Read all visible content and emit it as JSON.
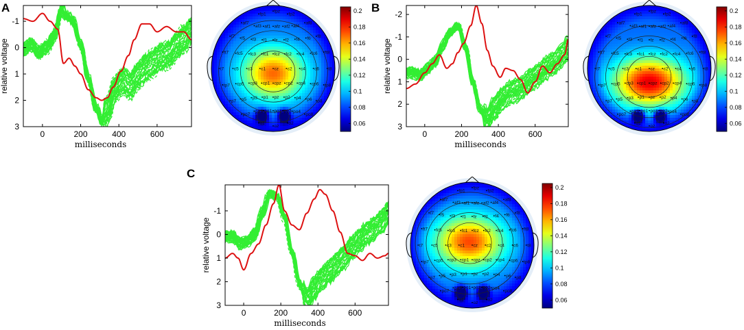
{
  "panels": [
    "A",
    "B",
    "C"
  ],
  "colors": {
    "green": "#33ee33",
    "red": "#dd1111"
  },
  "chart_data": [
    {
      "panel": "A",
      "type": "line",
      "xlabel": "milliseconds",
      "ylabel": "relative voltage",
      "xlim": [
        -100,
        780
      ],
      "ylim": [
        3,
        -1.6
      ],
      "y_inverted": true,
      "xticks": [
        0,
        200,
        400,
        600
      ],
      "yticks": [
        -1,
        0,
        1,
        2,
        3
      ],
      "series": [
        {
          "name": "red",
          "x": [
            -100,
            -50,
            0,
            40,
            80,
            110,
            140,
            170,
            200,
            240,
            280,
            310,
            340,
            370,
            410,
            450,
            480,
            520,
            560,
            600,
            650,
            700,
            740,
            780
          ],
          "y": [
            -1.1,
            -1.0,
            -1.3,
            -1.0,
            -0.7,
            0.6,
            0.4,
            0.7,
            1.0,
            1.6,
            1.9,
            2.0,
            1.9,
            1.5,
            0.9,
            0.3,
            -0.3,
            -0.9,
            -0.9,
            -0.6,
            -0.8,
            -0.6,
            -0.6,
            -0.3
          ]
        },
        {
          "name": "green",
          "x": [
            -100,
            -60,
            -20,
            20,
            60,
            100,
            130,
            160,
            200,
            240,
            280,
            310,
            340,
            380,
            420,
            460,
            500,
            540,
            580,
            620,
            660,
            700,
            740,
            780
          ],
          "y": [
            0.1,
            -0.1,
            0.2,
            0.0,
            -0.4,
            -1.4,
            -1.2,
            -1.0,
            -0.1,
            1.2,
            2.3,
            2.8,
            2.4,
            1.6,
            1.3,
            1.5,
            1.1,
            0.8,
            0.6,
            0.4,
            0.3,
            0.0,
            -0.3,
            -0.6
          ]
        }
      ]
    },
    {
      "panel": "B",
      "type": "line",
      "xlabel": "milliseconds",
      "ylabel": "relative voltage",
      "xlim": [
        -100,
        780
      ],
      "ylim": [
        3,
        -2.4
      ],
      "y_inverted": true,
      "xticks": [
        0,
        200,
        400,
        600
      ],
      "yticks": [
        -2,
        -1,
        0,
        1,
        2,
        3
      ],
      "series": [
        {
          "name": "red",
          "x": [
            -100,
            -50,
            0,
            40,
            80,
            120,
            150,
            180,
            210,
            250,
            280,
            310,
            340,
            370,
            410,
            440,
            480,
            520,
            560,
            600,
            640,
            680,
            720,
            760,
            780
          ],
          "y": [
            1.3,
            1.1,
            0.6,
            0.2,
            -0.2,
            0.4,
            0.2,
            -0.3,
            -0.7,
            -1.5,
            -2.4,
            -1.6,
            -0.4,
            0.3,
            0.8,
            0.4,
            0.5,
            0.9,
            1.5,
            1.0,
            0.3,
            0.6,
            0.2,
            -0.2,
            -0.9
          ]
        },
        {
          "name": "green",
          "x": [
            -100,
            -60,
            -20,
            20,
            60,
            100,
            140,
            180,
            220,
            260,
            300,
            340,
            380,
            420,
            460,
            500,
            540,
            580,
            620,
            660,
            700,
            740,
            780
          ],
          "y": [
            0.6,
            0.6,
            0.7,
            0.4,
            0.1,
            -0.6,
            -1.2,
            -1.5,
            -0.6,
            1.0,
            2.2,
            2.7,
            2.2,
            1.8,
            1.5,
            1.4,
            1.2,
            0.9,
            0.7,
            0.4,
            0.2,
            -0.1,
            -0.5
          ]
        }
      ]
    },
    {
      "panel": "C",
      "type": "line",
      "xlabel": "milliseconds",
      "ylabel": "relative voltage",
      "xlim": [
        -100,
        780
      ],
      "ylim": [
        3,
        -2.1
      ],
      "y_inverted": true,
      "xticks": [
        0,
        200,
        400,
        600
      ],
      "yticks": [
        -1,
        0,
        1,
        2,
        3
      ],
      "series": [
        {
          "name": "red",
          "x": [
            -100,
            -60,
            -30,
            0,
            40,
            80,
            120,
            160,
            190,
            220,
            260,
            300,
            340,
            380,
            410,
            440,
            480,
            520,
            560,
            600,
            640,
            680,
            720,
            760,
            780
          ],
          "y": [
            1.0,
            0.8,
            1.0,
            1.5,
            0.8,
            0.4,
            -0.4,
            -1.3,
            -2.1,
            -1.0,
            -0.4,
            -0.2,
            -0.9,
            -1.5,
            -1.9,
            -1.7,
            -1.0,
            -0.1,
            0.8,
            0.9,
            1.1,
            0.8,
            1.0,
            0.9,
            0.8
          ]
        },
        {
          "name": "green",
          "x": [
            -100,
            -60,
            -20,
            20,
            60,
            100,
            140,
            180,
            220,
            260,
            300,
            340,
            380,
            420,
            460,
            500,
            540,
            580,
            620,
            660,
            700,
            740,
            780
          ],
          "y": [
            0.1,
            0.1,
            0.4,
            0.3,
            0.0,
            -0.9,
            -1.7,
            -1.6,
            -0.7,
            0.8,
            2.1,
            2.8,
            2.3,
            1.9,
            1.6,
            1.3,
            1.0,
            0.6,
            0.3,
            0.0,
            -0.2,
            -0.5,
            -0.9
          ]
        }
      ]
    }
  ],
  "colorbar": {
    "ticks": [
      "0.2",
      "0.18",
      "0.16",
      "0.14",
      "0.12",
      "0.1",
      "0.08",
      "0.06"
    ],
    "min": 0.05,
    "max": 0.205
  },
  "topomap_electrodes": [
    "fp1",
    "fpz",
    "fp2",
    "af7",
    "af3",
    "af1",
    "afz",
    "af2",
    "af4",
    "af8",
    "f7",
    "f5",
    "f3",
    "f1",
    "fz",
    "f2",
    "f4",
    "f6",
    "f8",
    "ft7",
    "fc5",
    "fc3",
    "fc1",
    "fcz",
    "fc2",
    "fc4",
    "fc6",
    "ft8",
    "t7",
    "c5",
    "c3",
    "c1",
    "cz",
    "c2",
    "c4",
    "c6",
    "t8",
    "tp7",
    "cp5",
    "cp3",
    "cp1",
    "cpz",
    "cp2",
    "cp4",
    "cp6",
    "tp8",
    "p7",
    "p5",
    "p3",
    "p1",
    "pz",
    "p2",
    "p4",
    "p6",
    "p8",
    "po7",
    "po3",
    "po1",
    "poz",
    "po2",
    "po4",
    "po8",
    "o1",
    "oz",
    "o2"
  ]
}
